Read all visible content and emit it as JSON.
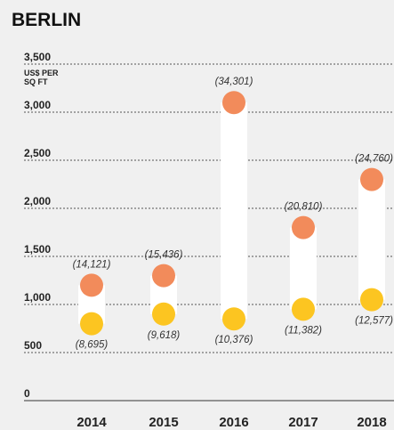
{
  "chart_data": {
    "type": "dumbbell",
    "title": "BERLIN",
    "y_label": [
      "US$ PER",
      "SQ FT"
    ],
    "categories": [
      "2014",
      "2015",
      "2016",
      "2017",
      "2018"
    ],
    "series": [
      {
        "color": "#f28b5b",
        "values": [
          1200,
          1300,
          3100,
          1800,
          2300
        ],
        "labels": [
          "(14,121)",
          "(15,436)",
          "(34,301)",
          "(20,810)",
          "(24,760)"
        ]
      },
      {
        "color": "#fcc521",
        "values": [
          800,
          900,
          850,
          950,
          1050
        ],
        "labels": [
          "(8,695)",
          "(9,618)",
          "(10,376)",
          "(11,382)",
          "(12,577)"
        ]
      }
    ],
    "ylim": [
      0,
      3500
    ],
    "yticks": [
      0,
      500,
      {
        "value": 1000,
        "label": "1,000"
      },
      {
        "value": 1500,
        "label": "1,500"
      },
      {
        "value": 2000,
        "label": "2,000"
      },
      {
        "value": 2500,
        "label": "2,500"
      },
      {
        "value": 3000,
        "label": "3,000"
      },
      {
        "value": 3500,
        "label": "3,500"
      }
    ],
    "grid": true
  }
}
